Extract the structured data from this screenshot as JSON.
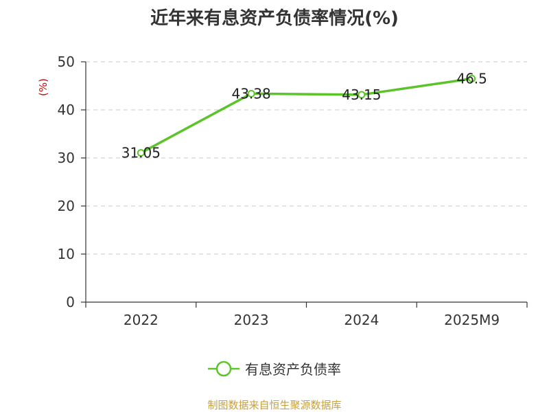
{
  "title": "近年来有息资产负债率情况(%)",
  "footer": {
    "text": "制图数据来自恒生聚源数据库",
    "color": "#c8a03c"
  },
  "chart_data": {
    "type": "line",
    "title": "近年来有息资产负债率情况(%)",
    "categories": [
      "2022",
      "2023",
      "2024",
      "2025M9"
    ],
    "series": [
      {
        "name": "有息资产负债率",
        "values": [
          31.05,
          43.38,
          43.15,
          46.5
        ],
        "color": "#5cc42b"
      }
    ],
    "data_labels": [
      "31.05",
      "43.38",
      "43.15",
      "46.5"
    ],
    "ylabel": "(%)",
    "ylabel_color": "#cc0000",
    "ylim": [
      0,
      50
    ],
    "yticks": [
      0,
      10,
      20,
      30,
      40,
      50
    ],
    "grid": true,
    "legend_position": "bottom"
  }
}
